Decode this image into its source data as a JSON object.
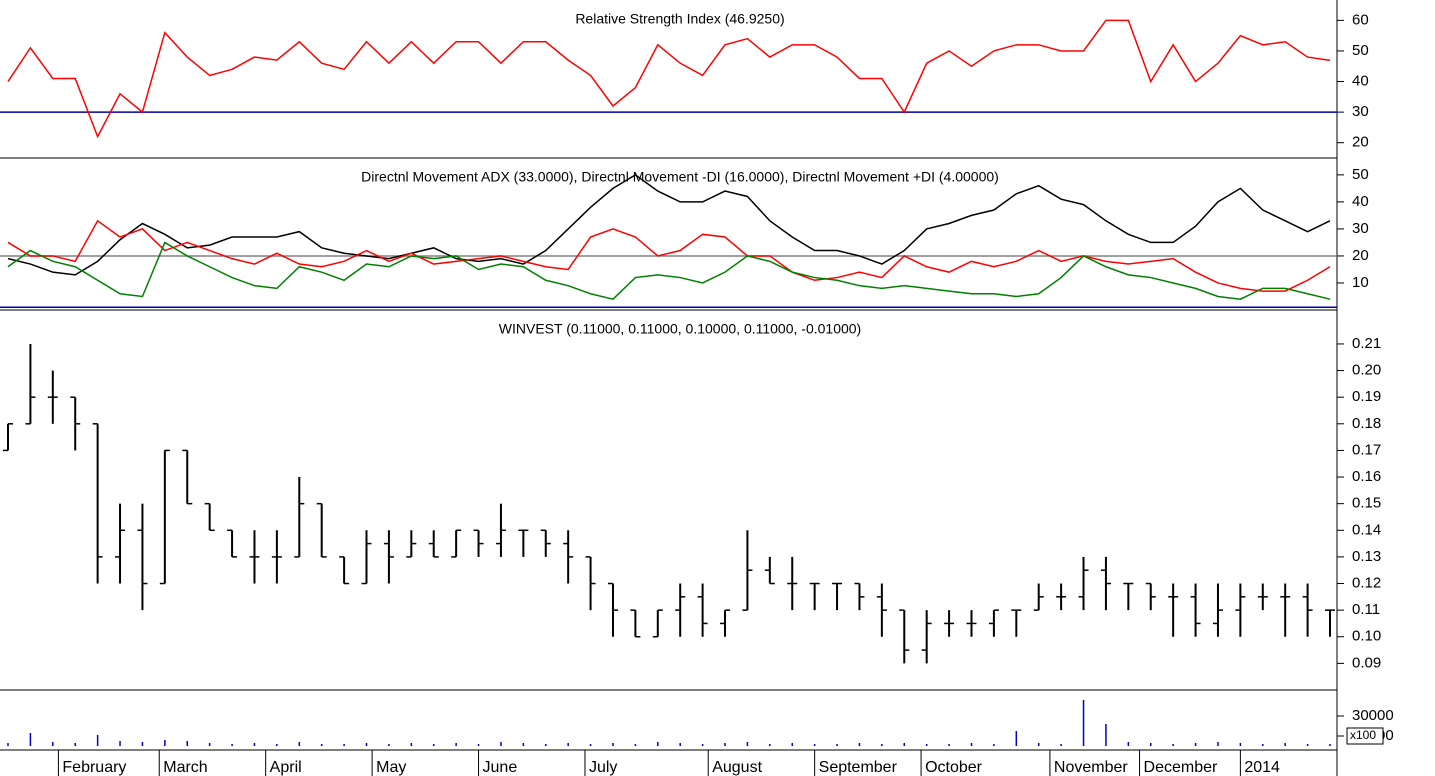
{
  "chart_data": [
    {
      "type": "line",
      "title": "Relative Strength Index (46.9250)",
      "x": [
        0,
        4,
        8,
        12,
        16,
        20,
        24,
        28,
        32,
        36,
        40,
        44,
        48,
        52,
        56,
        60,
        64,
        68,
        72,
        76,
        80,
        84,
        88,
        92,
        96,
        100,
        104,
        108,
        112,
        116,
        120,
        124,
        128,
        132,
        136,
        140,
        144,
        148,
        152,
        156,
        160,
        164,
        168,
        172,
        176,
        180,
        184,
        188,
        192,
        196,
        200,
        204,
        208,
        212,
        216,
        220,
        224,
        228,
        232,
        236
      ],
      "xlim": [
        0,
        236
      ],
      "ylim": [
        15,
        66
      ],
      "yticks": [
        20,
        30,
        40,
        50,
        60
      ],
      "hlines": [
        {
          "value": 30,
          "color": "#0000aa"
        }
      ],
      "series": [
        {
          "color": "#ff0000",
          "values": [
            40,
            51,
            41,
            41,
            22,
            36,
            30,
            56,
            48,
            42,
            44,
            48,
            47,
            53,
            46,
            44,
            53,
            46,
            53,
            46,
            53,
            53,
            46,
            53,
            53,
            47,
            42,
            32,
            38,
            52,
            46,
            42,
            52,
            54,
            48,
            52,
            52,
            48,
            41,
            41,
            30,
            46,
            50,
            45,
            50,
            52,
            52,
            50,
            50,
            60,
            60,
            40,
            52,
            40,
            46,
            55,
            52,
            53,
            48,
            46.925
          ]
        }
      ]
    },
    {
      "type": "line",
      "title": "Directnl Movement ADX (33.0000), Directnl Movement -DI (16.0000), Directnl Movement +DI (4.00000)",
      "x": [
        0,
        4,
        8,
        12,
        16,
        20,
        24,
        28,
        32,
        36,
        40,
        44,
        48,
        52,
        56,
        60,
        64,
        68,
        72,
        76,
        80,
        84,
        88,
        92,
        96,
        100,
        104,
        108,
        112,
        116,
        120,
        124,
        128,
        132,
        136,
        140,
        144,
        148,
        152,
        156,
        160,
        164,
        168,
        172,
        176,
        180,
        184,
        188,
        192,
        196,
        200,
        204,
        208,
        212,
        216,
        220,
        224,
        228,
        232,
        236
      ],
      "xlim": [
        0,
        236
      ],
      "ylim": [
        0,
        55.5
      ],
      "yticks": [
        10,
        20,
        30,
        40,
        50
      ],
      "hlines": [
        {
          "value": 20,
          "color": "#808080"
        },
        {
          "value": 1,
          "color": "#0000aa"
        }
      ],
      "series": [
        {
          "color": "#000000",
          "values": [
            19,
            17,
            14,
            13,
            18,
            26,
            32,
            28,
            23,
            24,
            27,
            27,
            27,
            29,
            23,
            21,
            20,
            19,
            21,
            23,
            19,
            18,
            19,
            17,
            22,
            30,
            38,
            45,
            50,
            44,
            40,
            40,
            44,
            42,
            33,
            27,
            22,
            22,
            20,
            17,
            22,
            30,
            32,
            35,
            37,
            43,
            46,
            41,
            39,
            33,
            28,
            25,
            25,
            31,
            40,
            45,
            37,
            33,
            29,
            33
          ]
        },
        {
          "color": "#ff0000",
          "values": [
            25,
            20,
            20,
            18,
            33,
            27,
            30,
            22,
            25,
            22,
            19,
            17,
            21,
            17,
            16,
            18,
            22,
            18,
            21,
            17,
            18,
            19,
            20,
            18,
            16,
            15,
            27,
            30,
            27,
            20,
            22,
            28,
            27,
            20,
            20,
            14,
            11,
            12,
            14,
            12,
            20,
            16,
            14,
            18,
            16,
            18,
            22,
            18,
            20,
            18,
            17,
            18,
            19,
            14,
            10,
            8,
            7,
            7,
            11,
            16
          ]
        },
        {
          "color": "#008000",
          "values": [
            16,
            22,
            18,
            16,
            11,
            6,
            5,
            25,
            20,
            16,
            12,
            9,
            8,
            16,
            14,
            11,
            17,
            16,
            20,
            19,
            20,
            15,
            17,
            16,
            11,
            9,
            6,
            4,
            12,
            13,
            12,
            10,
            14,
            20,
            18,
            14,
            12,
            11,
            9,
            8,
            9,
            8,
            7,
            6,
            6,
            5,
            6,
            12,
            20,
            16,
            13,
            12,
            10,
            8,
            5,
            4,
            8,
            8,
            6,
            4
          ]
        }
      ]
    },
    {
      "type": "ohlc",
      "title": "WINVEST (0.11000, 0.11000, 0.10000, 0.11000, -0.01000)",
      "x": [
        0,
        4,
        8,
        12,
        16,
        20,
        24,
        28,
        32,
        36,
        40,
        44,
        48,
        52,
        56,
        60,
        64,
        68,
        72,
        76,
        80,
        84,
        88,
        92,
        96,
        100,
        104,
        108,
        112,
        116,
        120,
        124,
        128,
        132,
        136,
        140,
        144,
        148,
        152,
        156,
        160,
        164,
        168,
        172,
        176,
        180,
        184,
        188,
        192,
        196,
        200,
        204,
        208,
        212,
        216,
        220,
        224,
        228,
        232,
        236
      ],
      "xlim": [
        0,
        236
      ],
      "ylim": [
        0.08,
        0.222
      ],
      "yticks": [
        0.09,
        {
          "value": 0.1,
          "label": "0.10"
        },
        0.11,
        0.12,
        0.13,
        0.14,
        0.15,
        0.16,
        0.17,
        0.18,
        0.19,
        {
          "value": 0.2,
          "label": "0.20"
        },
        0.21
      ],
      "color": "#000000",
      "open": [
        0.17,
        0.18,
        0.19,
        0.19,
        0.18,
        0.13,
        0.14,
        0.12,
        0.17,
        0.15,
        0.14,
        0.13,
        0.13,
        0.13,
        0.15,
        0.13,
        0.12,
        0.135,
        0.13,
        0.135,
        0.13,
        0.14,
        0.135,
        0.14,
        0.14,
        0.135,
        0.13,
        0.12,
        0.11,
        0.1,
        0.11,
        0.115,
        0.105,
        0.11,
        0.125,
        0.12,
        0.12,
        0.12,
        0.12,
        0.115,
        0.11,
        0.095,
        0.105,
        0.105,
        0.105,
        0.11,
        0.11,
        0.115,
        0.115,
        0.125,
        0.12,
        0.12,
        0.115,
        0.115,
        0.105,
        0.11,
        0.115,
        0.115,
        0.115,
        0.11
      ],
      "high": [
        0.18,
        0.21,
        0.2,
        0.19,
        0.18,
        0.15,
        0.15,
        0.17,
        0.17,
        0.15,
        0.14,
        0.14,
        0.14,
        0.16,
        0.15,
        0.13,
        0.14,
        0.14,
        0.14,
        0.14,
        0.14,
        0.14,
        0.15,
        0.14,
        0.14,
        0.14,
        0.13,
        0.12,
        0.11,
        0.11,
        0.12,
        0.12,
        0.11,
        0.14,
        0.13,
        0.13,
        0.12,
        0.12,
        0.12,
        0.12,
        0.11,
        0.11,
        0.11,
        0.11,
        0.11,
        0.11,
        0.12,
        0.12,
        0.13,
        0.13,
        0.12,
        0.12,
        0.12,
        0.12,
        0.12,
        0.12,
        0.12,
        0.12,
        0.12,
        0.11
      ],
      "low": [
        0.17,
        0.18,
        0.18,
        0.17,
        0.12,
        0.12,
        0.11,
        0.12,
        0.15,
        0.14,
        0.13,
        0.12,
        0.12,
        0.13,
        0.13,
        0.12,
        0.12,
        0.12,
        0.13,
        0.13,
        0.13,
        0.13,
        0.13,
        0.13,
        0.13,
        0.12,
        0.11,
        0.1,
        0.1,
        0.1,
        0.1,
        0.1,
        0.1,
        0.11,
        0.12,
        0.11,
        0.11,
        0.11,
        0.11,
        0.1,
        0.09,
        0.09,
        0.1,
        0.1,
        0.1,
        0.1,
        0.11,
        0.11,
        0.11,
        0.11,
        0.11,
        0.11,
        0.1,
        0.1,
        0.1,
        0.1,
        0.11,
        0.1,
        0.1,
        0.1
      ],
      "close": [
        0.18,
        0.19,
        0.19,
        0.18,
        0.13,
        0.14,
        0.12,
        0.17,
        0.15,
        0.14,
        0.13,
        0.13,
        0.13,
        0.15,
        0.13,
        0.12,
        0.135,
        0.13,
        0.135,
        0.13,
        0.14,
        0.135,
        0.14,
        0.14,
        0.135,
        0.13,
        0.12,
        0.11,
        0.1,
        0.11,
        0.115,
        0.105,
        0.11,
        0.125,
        0.12,
        0.12,
        0.12,
        0.12,
        0.115,
        0.11,
        0.095,
        0.105,
        0.105,
        0.105,
        0.11,
        0.11,
        0.115,
        0.115,
        0.125,
        0.12,
        0.12,
        0.115,
        0.115,
        0.105,
        0.11,
        0.115,
        0.115,
        0.115,
        0.11,
        0.11
      ]
    },
    {
      "type": "bar",
      "annotation": "x100",
      "x": [
        0,
        4,
        8,
        12,
        16,
        20,
        24,
        28,
        32,
        36,
        40,
        44,
        48,
        52,
        56,
        60,
        64,
        68,
        72,
        76,
        80,
        84,
        88,
        92,
        96,
        100,
        104,
        108,
        112,
        116,
        120,
        124,
        128,
        132,
        136,
        140,
        144,
        148,
        152,
        156,
        160,
        164,
        168,
        172,
        176,
        180,
        184,
        188,
        192,
        196,
        200,
        204,
        208,
        212,
        216,
        220,
        224,
        228,
        232,
        236
      ],
      "xlim": [
        0,
        236
      ],
      "ylim": [
        0,
        54000
      ],
      "yticks": [
        10000,
        30000
      ],
      "color": "#0000cc",
      "xticks": [
        {
          "value": 9,
          "label": "February"
        },
        {
          "value": 27,
          "label": "March"
        },
        {
          "value": 46,
          "label": "April"
        },
        {
          "value": 65,
          "label": "May"
        },
        {
          "value": 84,
          "label": "June"
        },
        {
          "value": 103,
          "label": "July"
        },
        {
          "value": 125,
          "label": "August"
        },
        {
          "value": 144,
          "label": "September"
        },
        {
          "value": 163,
          "label": "October"
        },
        {
          "value": 186,
          "label": "November"
        },
        {
          "value": 202,
          "label": "December"
        },
        {
          "value": 220,
          "label": "2014"
        }
      ],
      "values": [
        3000,
        13000,
        4000,
        3000,
        11000,
        5000,
        4000,
        6000,
        5000,
        3000,
        2000,
        3000,
        2000,
        4000,
        2000,
        2000,
        3000,
        2000,
        3000,
        2000,
        3000,
        2000,
        4000,
        3000,
        2000,
        3000,
        2000,
        3000,
        2000,
        4000,
        3000,
        2000,
        3000,
        4000,
        2000,
        3000,
        2000,
        2000,
        3000,
        2000,
        3000,
        2000,
        2000,
        3000,
        2000,
        15000,
        3000,
        2000,
        46000,
        22000,
        4000,
        3000,
        2000,
        3000,
        4000,
        3000,
        2000,
        3000,
        2000,
        2000
      ]
    }
  ]
}
